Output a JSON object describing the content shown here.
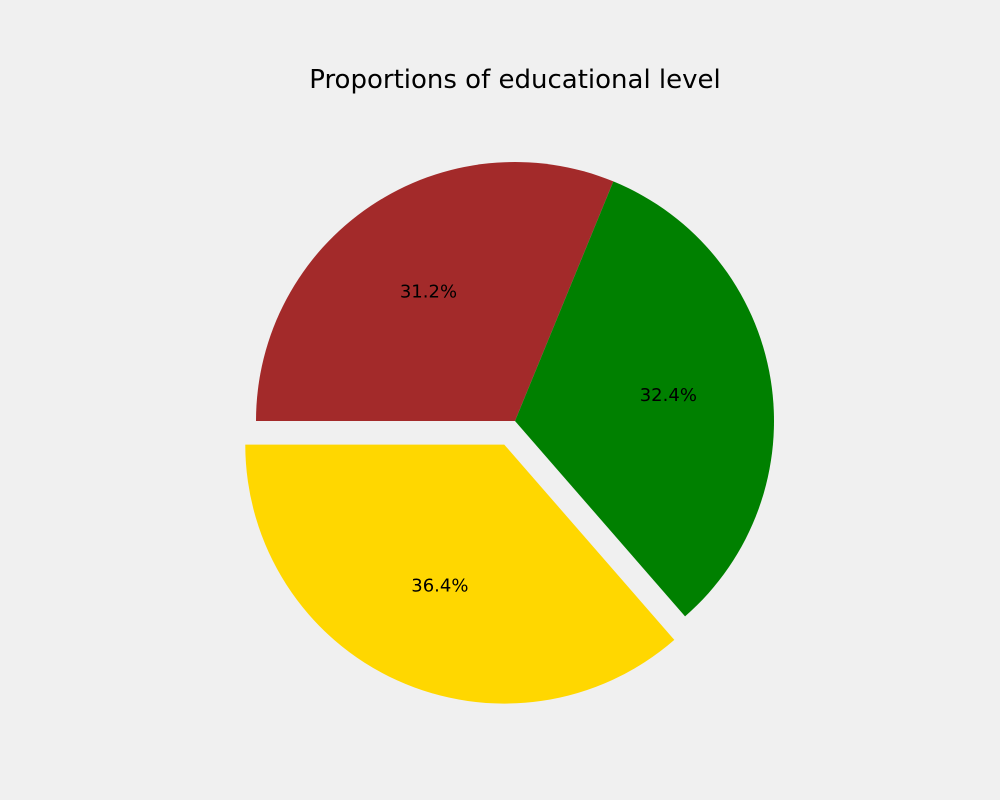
{
  "chart_data": {
    "type": "pie",
    "title": "Proportions of educational level",
    "slices": [
      {
        "value": 31.2,
        "label": "31.2%",
        "color": "#a32a2a",
        "explode": false
      },
      {
        "value": 32.4,
        "label": "32.4%",
        "color": "#008000",
        "explode": false
      },
      {
        "value": 36.4,
        "label": "36.4%",
        "color": "#ffd700",
        "explode": true
      }
    ],
    "start_angle_deg": 180,
    "direction": "clockwise",
    "legend": "none",
    "background": "#f0f0f0"
  }
}
